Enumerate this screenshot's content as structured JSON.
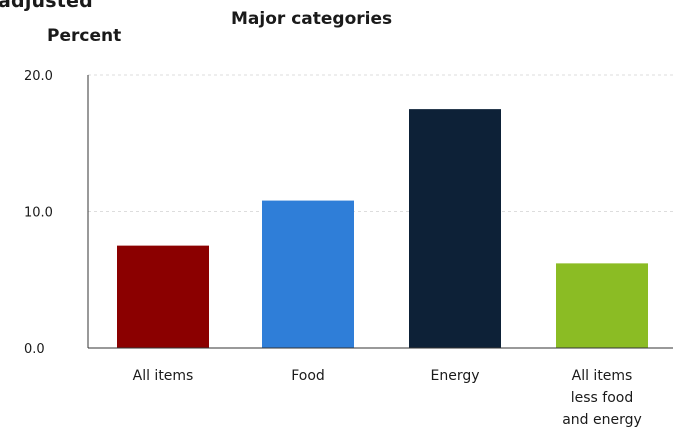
{
  "header": {
    "cut_title": "adjusted",
    "chart_title": "Major categories",
    "ylabel": "Percent"
  },
  "colors": {
    "all_items": "#8b0000",
    "food": "#2f7ed8",
    "energy": "#0d2137",
    "core": "#8bbc24",
    "gridline": "#dddddd",
    "axis": "#333333"
  },
  "chart_data": {
    "type": "bar",
    "title": "Major categories",
    "xlabel": "",
    "ylabel": "Percent",
    "categories": [
      [
        "All items"
      ],
      [
        "Food"
      ],
      [
        "Energy"
      ],
      [
        "All items",
        "less food",
        "and energy"
      ]
    ],
    "values": [
      7.5,
      10.8,
      17.5,
      6.2
    ],
    "bar_colors": [
      "#8b0000",
      "#2f7ed8",
      "#0d2137",
      "#8bbc24"
    ],
    "ylim": [
      0,
      20
    ],
    "yticks": [
      "0.0",
      "10.0",
      "20.0"
    ],
    "ytick_values": [
      0,
      10,
      20
    ],
    "grid": true,
    "legend": "none"
  }
}
